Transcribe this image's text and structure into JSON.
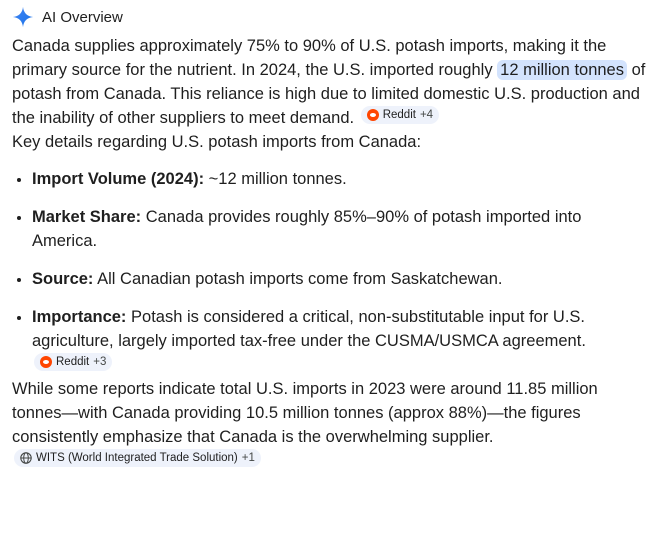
{
  "header": {
    "title": "AI Overview",
    "icon": "sparkle-icon",
    "accent": "#4285f4"
  },
  "para1": {
    "before": "Canada supplies approximately 75% to 90% of U.S. potash imports, making it the primary source for the nutrient. In 2024, the U.S. imported roughly ",
    "highlight": "12 million tonnes",
    "after": " of potash from Canada. This reliance is high due to limited domestic U.S. production and the inability of other suppliers to meet demand.",
    "source": {
      "label": "Reddit",
      "count": "+4",
      "icon": "reddit-icon"
    }
  },
  "intro": "Key details regarding U.S. potash imports from Canada:",
  "details": [
    {
      "term": "Import Volume (2024):",
      "text": " ~12 million tonnes."
    },
    {
      "term": "Market Share:",
      "text": " Canada provides roughly 85%–90% of potash imported into America."
    },
    {
      "term": "Source:",
      "text": " All Canadian potash imports come from Saskatchewan."
    },
    {
      "term": "Importance:",
      "text": " Potash is considered a critical, non-substitutable input for U.S. agriculture, largely imported tax-free under the CUSMA/USMCA agreement.",
      "source": {
        "label": "Reddit",
        "count": "+3",
        "icon": "reddit-icon"
      }
    }
  ],
  "closing": {
    "text": "While some reports indicate total U.S. imports in 2023 were around 11.85 million tonnes—with Canada providing 10.5 million tonnes (approx 88%)—the figures consistently emphasize that Canada is the overwhelming supplier.",
    "source": {
      "label": "WITS (World Integrated Trade Solution)",
      "count": "+1",
      "icon": "globe-icon"
    }
  }
}
